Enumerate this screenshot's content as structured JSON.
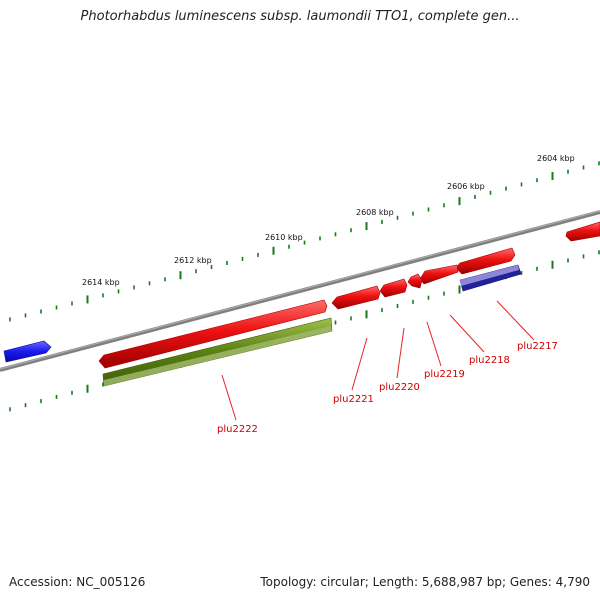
{
  "title": "Photorhabdus luminescens subsp. laumondii TTO1, complete gen...",
  "footer": {
    "accession": "Accession: NC_005126",
    "summary": "Topology: circular; Length: 5,688,987 bp; Genes: 4,790"
  },
  "ruler_labels": [
    "2604 kbp",
    "2606 kbp",
    "2608 kbp",
    "2610 kbp",
    "2612 kbp",
    "2614 kbp"
  ],
  "gene_labels": [
    "plu2217",
    "plu2218",
    "plu2219",
    "plu2220",
    "plu2221",
    "plu2222"
  ],
  "colors": {
    "forward_feature": "#ee1111",
    "reverse_feature": "#1a1aee",
    "cds_feature": "#5a7f12",
    "misc_feature": "#22229a",
    "backbone": "#808080",
    "ticks": "#1a7a1a",
    "gene_label": "#cc0000"
  }
}
